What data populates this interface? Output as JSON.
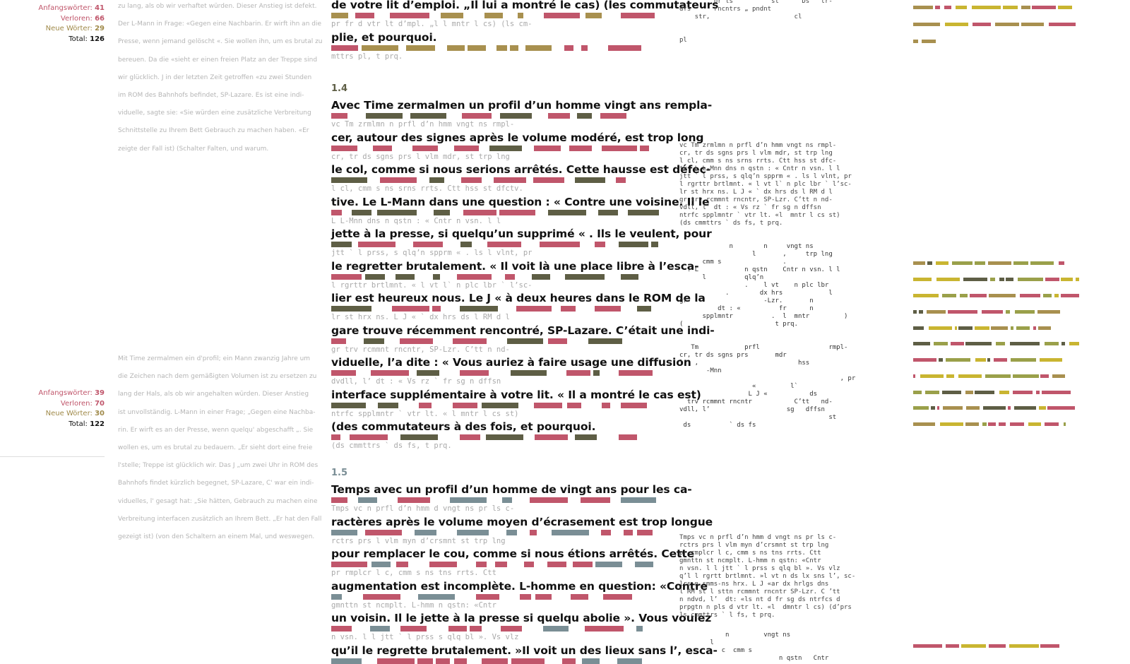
{
  "stats_top": {
    "anfangswoerter_label": "Anfangswörter:",
    "anfangswoerter": "41",
    "verloren_label": "Verloren:",
    "verloren": "66",
    "neue_label": "Neue Wörter:",
    "neue": "29",
    "total_label": "Total:",
    "total": "126"
  },
  "stats_bottom": {
    "anfangswoerter_label": "Anfangswörter:",
    "anfangswoerter": "39",
    "verloren_label": "Verloren:",
    "verloren": "70",
    "neue_label": "Neue Wörter:",
    "neue": "30",
    "total_label": "Total:",
    "total": "122"
  },
  "german_top": [
    "zu lang, als ob wir verhaftet würden. Dieser Anstieg ist defekt.",
    "Der L-Mann in Frage: «Gegen eine Nachbarin. Er wirft ihn an die",
    "Presse, wenn jemand gelöscht «. Sie wollen ihn, um es brutal zu",
    "bereuen. Da die «sieht er einen freien Platz an der Treppe sind",
    "wir glücklich. J in der letzten Zeit getroffen «zu zwei Stunden",
    "im ROM des Bahnhofs befindet, SP-Lazare. Es ist eine indi-",
    "viduelle, sagte sie: «Sie würden eine zusätzliche Verbreitung",
    "Schnittstelle zu Ihrem Bett Gebrauch zu machen haben. «Er",
    "zeigte der Fall ist) (Schalter Falten, und warum."
  ],
  "german_bottom": [
    "Mit Time zermalmen ein d'profil; ein Mann zwanzig Jahre um",
    "die Zeichen nach dem gemäßigten Volumen ist zu ersetzen zu",
    "lang der Hals, als ob wir angehalten würden. Dieser Anstieg",
    "ist unvollständig. L-Mann in einer Frage; „Gegen eine Nachba-",
    "rin. Er wirft es an der Presse, wenn quelqu' abgeschafft „. Sie",
    "wollen es, um es brutal zu bedauern. „Er sieht dort eine freie",
    "l'stelle; Treppe ist glücklich wir. Das J „um zwei Uhr in ROM des",
    "Bahnhofs findet kürzlich begegnet, SP-Lazare, C' war ein indi-",
    "viduelles, l' gesagt hat: „Sie hätten, Gebrauch zu machen eine",
    "Verbreitung interfacen zusätzlich an Ihrem Bett. „Er hat den Fall",
    "gezeigt ist) (von den Schaltern an einem Mal, und weswegen."
  ],
  "sections": [
    {
      "num": "",
      "lines": [
        {
          "text": "de votre lit d’emploi. „Il lui a montré le cas) (les commutateurs",
          "mono": "pr fr d vtr lt d’mpl. „l l  mntr l cs) (ls cm-"
        },
        {
          "text": "plie, et pourquoi.",
          "mono": "mttrs pl, t prq."
        }
      ]
    },
    {
      "num": "1.4",
      "lines": [
        {
          "text": "Avec Time zermalmen un profil d’un homme vingt ans rempla-",
          "mono": "vc Tm zrmlmn n prfl d’n hmm vngt ns rmpl-"
        },
        {
          "text": "cer, autour des signes après le volume modéré, est trop long",
          "mono": "cr, tr ds sgns prs l vlm mdr, st trp lng"
        },
        {
          "text": "le col, comme si nous serions arrêtés. Cette hausse est défec-",
          "mono": "l cl, cmm s ns srns rrts. Ctt hss st dfctv."
        },
        {
          "text": "tive. Le L-Mann dans une question : « Contre une voisine. Il le",
          "mono": "L L-Mnn dns n qstn : « Cntr n vsn. l l"
        },
        {
          "text": "jette à la presse, si quelqu’un supprimé « . Ils le veulent, pour",
          "mono": "jtt ` l prss, s qlq’n spprm « . ls l vlnt, pr"
        },
        {
          "text": "le regretter brutalement. « Il voit là une place libre à l’esca-",
          "mono": "l rgrttr brtlmnt. « l vt l` n plc lbr ` l’sc-"
        },
        {
          "text": "lier est heureux nous. Le J « à deux heures dans le ROM de la",
          "mono": "lr st hrx ns. L J « ` dx hrs ds l RM d l"
        },
        {
          "text": "gare trouve récemment rencontré, SP-Lazare. C’était une indi-",
          "mono": "gr trv rcmmnt rncntr, SP-Lzr. C’tt n nd-"
        },
        {
          "text": "viduelle, l’a dite : « Vous auriez à faire usage une diffusion",
          "mono": "dvdll, l’ dt : « Vs rz ` fr sg n dffsn"
        },
        {
          "text": "interface supplémentaire à votre lit. « Il a montré le cas est)",
          "mono": "ntrfc spplmntr ` vtr lt. « l  mntr l cs st)"
        },
        {
          "text": "(des commutateurs à des fois, et pourquoi.",
          "mono": "(ds cmmttrs ` ds fs, t prq."
        }
      ]
    },
    {
      "num": "1.5",
      "lines": [
        {
          "text": "Temps avec un profil d’un homme de vingt ans pour les ca-",
          "mono": "Tmps vc n prfl d’n hmm d vngt ns pr ls c-"
        },
        {
          "text": "ractères après le volume moyen d’écrasement est trop longue",
          "mono": "rctrs prs l vlm myn d’crsmnt st trp lng"
        },
        {
          "text": "pour remplacer le cou, comme si nous étions arrêtés. Cette",
          "mono": "pr rmplcr l c, cmm s ns tns rrts. Ctt"
        },
        {
          "text": "augmentation est incomplète. L-homme en question: «Contre",
          "mono": "gmnttn st ncmplt. L-hmm n qstn: «Cntr"
        },
        {
          "text": "un voisin. Il le jette à la presse si quelqu abolie ». Vous voulez",
          "mono": "n vsn. l l jtt ` l prss s qlq bl ». Vs vlz"
        },
        {
          "text": "qu’il le regrette brutalement. »Il voit un des lieux sans l’, esca-",
          "mono": ""
        }
      ]
    }
  ],
  "code_blocks": {
    "top": "         pr ls          st      Ds   tr-\ndfs      rncntrs „ pndnt\n    str,                      cl\n\n\npl",
    "b1": "vc Tm zrmlmn n prfl d’n hmm vngt ns rmpl-\ncr, tr ds sgns prs l vlm mdr, st trp lng\nl cl, cmm s ns srns rrts. Ctt hss st dfc-\ntv. L L-Mnn dns n qstn : « Cntr n vsn. l l\njtt ` l prss, s qlq’n spprm « . ls l vlnt, pr\nl rgrttr brtlmnt. « l vt l` n plc lbr ` l’sc-\nlr st hrx ns. L J « ` dx hrs ds l RM d l\ngr trv rcmmnt rncntr, SP-Lzr. C’tt n nd-\nvdll, l’ dt : « Vs rz ` fr sg n dffsn\nntrfc spplmntr ` vtr lt. «l  mntr l cs st)\n(ds cmmttrs ` ds fs, t prq.",
    "b2": "             n        n     vngt ns\n                   l       ,     trp lng\n      cmm s                .\n  . L            n qstn    Cntr n vsn. l l\n      l          qlq’n\n                 .    l vt    n plc lbr\n            .        dx hrs            l\ngr                    -Lzr.       n\n          dt : «          fr      n\n      spplmntr          .  l  mntr         )\n(                        t prq.",
    "b3": "   Tm            prfl                  rmpl-\ncr, tr ds sgns prs       mdr\nl   ,                          hss\n       -Mnn\n                                          , pr\n                   «         l`\n                  L J «           ds\n  trv rcmmnt rncntr           C’tt   nd-\nvdll, l’                    sg   dffsn\n                                       st\n ds          ` ds fs",
    "b4": "Tmps vc n prfl d’n hmm d vngt ns pr ls c-\nrctrs prs l vlm myn d’crsmnt st trp lng\npr rmplcr l c, cmm s ns tns rrts. Ctt\ngmnttn st ncmplt. L-hmm n qstn: «Cntr\nn vsn. l l jtt ` l prss s qlq bl ». Vs vlz\nq’l l rgrtt brtlmnt. »l vt n ds lx sns l’, sc-\nlrs n smms-ns hrx. L J «ar dx hrlgs dns\nl RM st l sttn rcmmnt rncntr SP-Lzr. C ’tt\nn ndvd, l’  dt: «ls nt d fr sg ds ntrfcs d\nprpgtn n pls d vtr lt. «l  dmntr l cs) (d’prs\nls cmmttrs ` l fs, t prq.",
    "b5": "            n         vngt ns\n        l\n           c  cmm s\n                          n qstn   Cntr"
  },
  "colors": {
    "rose": "#c0566b",
    "olive": "#5e5e45",
    "khaki": "#a8904f",
    "yellow": "#c9b531",
    "slate": "#7a8e95",
    "green": "#9aa04a"
  }
}
